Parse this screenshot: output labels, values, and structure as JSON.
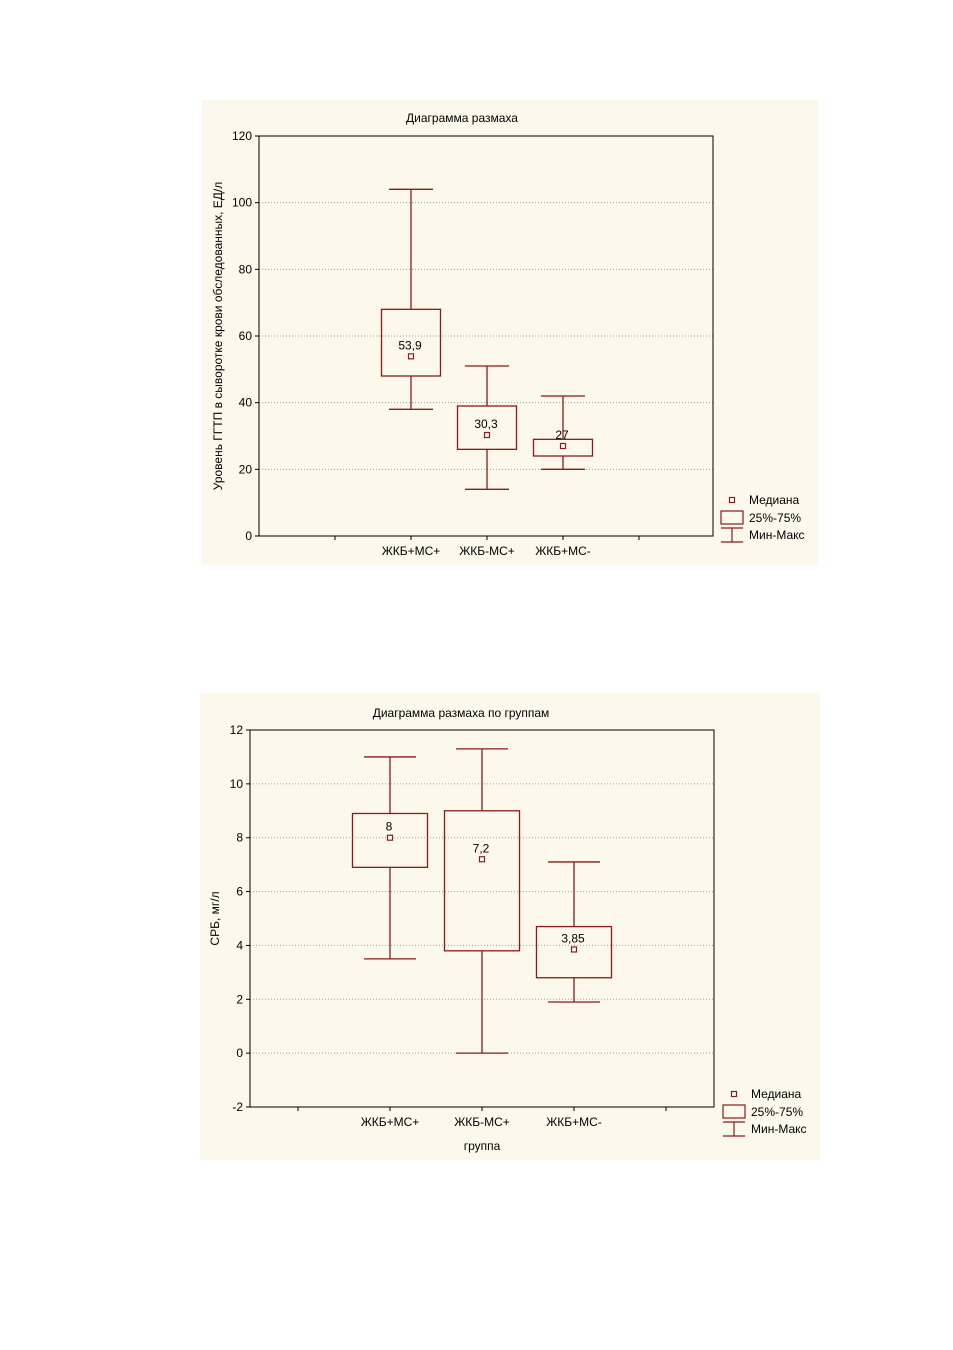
{
  "colors": {
    "box": "#8b1a1a",
    "grid": "#a0a0a0",
    "panel_bg": "#fdf8ec"
  },
  "chart_data": [
    {
      "type": "boxplot",
      "title": "Диаграмма размаха",
      "xlabel": "",
      "ylabel": "Уровень ГГТП в сыворотке крови обследованных, ЕД/л",
      "ylim": [
        0,
        120
      ],
      "yticks": [
        "0",
        "20",
        "40",
        "60",
        "80",
        "100",
        "120"
      ],
      "grid": true,
      "legend_position": "bottom-right",
      "legend": [
        "Медиана",
        "25%-75%",
        "Мин-Макс"
      ],
      "categories": [
        "ЖКБ+МС+",
        "ЖКБ-МС+",
        "ЖКБ+МС-"
      ],
      "boxes": [
        {
          "min": 38,
          "q1": 48,
          "median": 53.9,
          "q3": 68,
          "max": 104,
          "label": "53,9"
        },
        {
          "min": 14,
          "q1": 26,
          "median": 30.3,
          "q3": 39,
          "max": 51,
          "label": "30,3"
        },
        {
          "min": 20,
          "q1": 24,
          "median": 27,
          "q3": 29,
          "max": 42,
          "label": "27"
        }
      ]
    },
    {
      "type": "boxplot",
      "title": "Диаграмма размаха по группам",
      "xlabel": "группа",
      "ylabel": "СРБ, мг/л",
      "ylim": [
        -2,
        12
      ],
      "yticks": [
        "-2",
        "0",
        "2",
        "4",
        "6",
        "8",
        "10",
        "12"
      ],
      "grid": true,
      "legend_position": "bottom-right",
      "legend": [
        "Медиана",
        "25%-75%",
        "Мин-Макс"
      ],
      "categories": [
        "ЖКБ+МС+",
        "ЖКБ-МС+",
        "ЖКБ+МС-"
      ],
      "boxes": [
        {
          "min": 3.5,
          "q1": 6.9,
          "median": 8,
          "q3": 8.9,
          "max": 11,
          "label": "8"
        },
        {
          "min": 0,
          "q1": 3.8,
          "median": 7.2,
          "q3": 9,
          "max": 11.3,
          "label": "7,2"
        },
        {
          "min": 1.9,
          "q1": 2.8,
          "median": 3.85,
          "q3": 4.7,
          "max": 7.1,
          "label": "3,85"
        }
      ]
    }
  ]
}
